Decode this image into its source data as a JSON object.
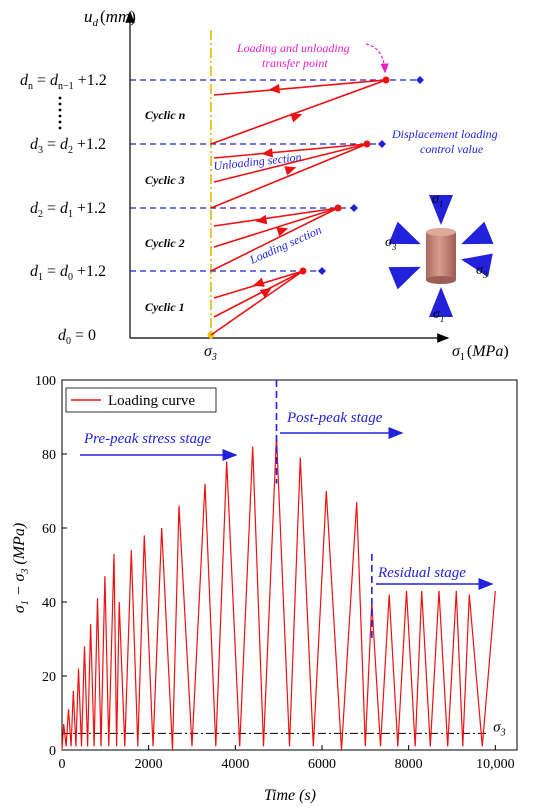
{
  "chart_data": [
    {
      "type": "line",
      "title": "",
      "ylabel_var": "u",
      "ylabel_sub": "d",
      "ylabel_unit": "mm",
      "xlabel_var": "σ",
      "xlabel_sub": "1",
      "xlabel_unit": "MPa",
      "x_tick_label": "σ3",
      "y_levels": [
        {
          "lhs": "d",
          "lhs_sub": "n",
          "rhs": "d",
          "rhs_sub": "n−1",
          "tail": "+1.2"
        },
        {
          "lhs": "d",
          "lhs_sub": "3",
          "rhs": "d",
          "rhs_sub": "2",
          "tail": "+1.2"
        },
        {
          "lhs": "d",
          "lhs_sub": "2",
          "rhs": "d",
          "rhs_sub": "1",
          "tail": "+1.2"
        },
        {
          "lhs": "d",
          "lhs_sub": "1",
          "rhs": "d",
          "rhs_sub": "0",
          "tail": "+1.2"
        },
        {
          "lhs": "d",
          "lhs_sub": "0",
          "rhs": "0",
          "rhs_sub": "",
          "tail": ""
        }
      ],
      "cycle_labels": [
        "Cyclic n",
        "Cyclic 3",
        "Cyclic 2",
        "Cyclic 1"
      ],
      "annotations": {
        "transfer_point": [
          "Loading and unloading",
          "transfer point"
        ],
        "control_value": [
          "Displacement loading",
          "control value"
        ],
        "unloading": "Unloading section",
        "loading": "Loading section"
      },
      "specimen_labels": {
        "top": "σ1",
        "bottom": "σ1",
        "left": "σ3",
        "right": "σ3"
      },
      "colors": {
        "curve": "#ee1111",
        "guide": "#2222dd",
        "sigma3_line": "#e8b800",
        "annotation_magenta": "#e81ec8",
        "specimen": "#c98a7a"
      }
    },
    {
      "type": "line",
      "title": "",
      "xlabel": "Time (s)",
      "ylabel": "σ1 − σ3 (MPa)",
      "xlim": [
        0,
        10500
      ],
      "ylim": [
        0,
        100
      ],
      "x_ticks": [
        "0",
        "2000",
        "4000",
        "6000",
        "8000",
        "10,000"
      ],
      "y_ticks": [
        "0",
        "20",
        "40",
        "60",
        "80",
        "100"
      ],
      "legend": "Loading curve",
      "legend_position": "top-left",
      "stage_labels": {
        "pre_peak": "Pre-peak stress stage",
        "post_peak": "Post-peak stage",
        "residual": "Residual stage"
      },
      "sigma3_label": "σ3",
      "sigma3_level": 4.5,
      "stage_boundaries": [
        4950,
        7150
      ],
      "series": [
        {
          "name": "Loading curve",
          "peaks": [
            [
              40,
              7
            ],
            [
              150,
              11
            ],
            [
              260,
              16
            ],
            [
              380,
              22
            ],
            [
              520,
              28
            ],
            [
              660,
              34
            ],
            [
              820,
              41
            ],
            [
              990,
              47
            ],
            [
              1200,
              53
            ],
            [
              1320,
              40
            ],
            [
              1600,
              54
            ],
            [
              1900,
              58
            ],
            [
              2300,
              60
            ],
            [
              2700,
              66
            ],
            [
              3300,
              72
            ],
            [
              3800,
              78
            ],
            [
              4400,
              82
            ],
            [
              4950,
              85
            ],
            [
              5500,
              79
            ],
            [
              6100,
              70
            ],
            [
              6800,
              67
            ],
            [
              7150,
              40
            ],
            [
              7550,
              42
            ],
            [
              7950,
              43
            ],
            [
              8300,
              43
            ],
            [
              8700,
              43
            ],
            [
              9100,
              43
            ],
            [
              9400,
              42
            ],
            [
              10000,
              43
            ]
          ],
          "troughs": [
            [
              0,
              0
            ],
            [
              95,
              1
            ],
            [
              210,
              1
            ],
            [
              320,
              1
            ],
            [
              450,
              1
            ],
            [
              590,
              1
            ],
            [
              740,
              1
            ],
            [
              900,
              1
            ],
            [
              1080,
              1
            ],
            [
              1260,
              1
            ],
            [
              1450,
              1
            ],
            [
              1750,
              1
            ],
            [
              2100,
              1
            ],
            [
              2550,
              0
            ],
            [
              3000,
              1
            ],
            [
              3550,
              1
            ],
            [
              4100,
              1
            ],
            [
              4650,
              1
            ],
            [
              5250,
              1
            ],
            [
              5800,
              1
            ],
            [
              6450,
              0
            ],
            [
              7000,
              1
            ],
            [
              7350,
              1
            ],
            [
              7750,
              1
            ],
            [
              8150,
              1
            ],
            [
              8500,
              1
            ],
            [
              8900,
              1
            ],
            [
              9250,
              1
            ],
            [
              9700,
              1
            ]
          ]
        }
      ]
    }
  ]
}
